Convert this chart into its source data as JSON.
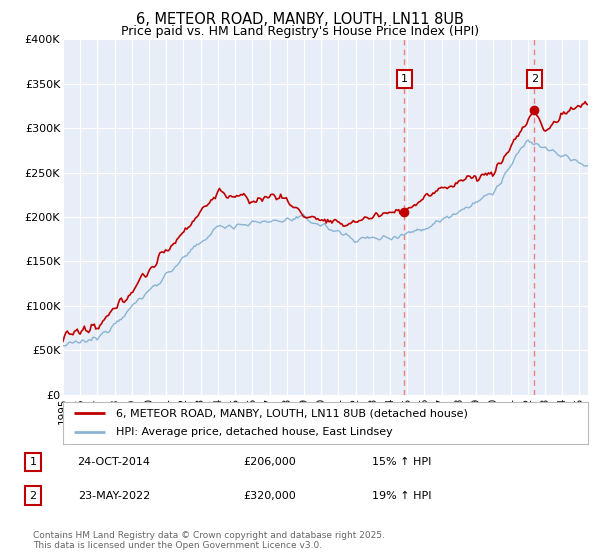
{
  "title1": "6, METEOR ROAD, MANBY, LOUTH, LN11 8UB",
  "title2": "Price paid vs. HM Land Registry's House Price Index (HPI)",
  "ylim": [
    0,
    400000
  ],
  "yticks": [
    0,
    50000,
    100000,
    150000,
    200000,
    250000,
    300000,
    350000,
    400000
  ],
  "ytick_labels": [
    "£0",
    "£50K",
    "£100K",
    "£150K",
    "£200K",
    "£250K",
    "£300K",
    "£350K",
    "£400K"
  ],
  "xticks": [
    1995,
    1996,
    1997,
    1998,
    1999,
    2000,
    2001,
    2002,
    2003,
    2004,
    2005,
    2006,
    2007,
    2008,
    2009,
    2010,
    2011,
    2012,
    2013,
    2014,
    2015,
    2016,
    2017,
    2018,
    2019,
    2020,
    2021,
    2022,
    2023,
    2024,
    2025
  ],
  "sale1_x": 2014.82,
  "sale1_y": 206000,
  "sale1_label": "1",
  "sale1_date": "24-OCT-2014",
  "sale1_price": "£206,000",
  "sale1_hpi": "15% ↑ HPI",
  "sale2_x": 2022.38,
  "sale2_y": 320000,
  "sale2_label": "2",
  "sale2_date": "23-MAY-2022",
  "sale2_price": "£320,000",
  "sale2_hpi": "19% ↑ HPI",
  "line1_color": "#c00000",
  "line2_color": "#8ab4d4",
  "vline_color": "#e88080",
  "background_plot": "#e8eef8",
  "legend1": "6, METEOR ROAD, MANBY, LOUTH, LN11 8UB (detached house)",
  "legend2": "HPI: Average price, detached house, East Lindsey",
  "footer": "Contains HM Land Registry data © Crown copyright and database right 2025.\nThis data is licensed under the Open Government Licence v3.0.",
  "title_fontsize": 10.5,
  "subtitle_fontsize": 9
}
